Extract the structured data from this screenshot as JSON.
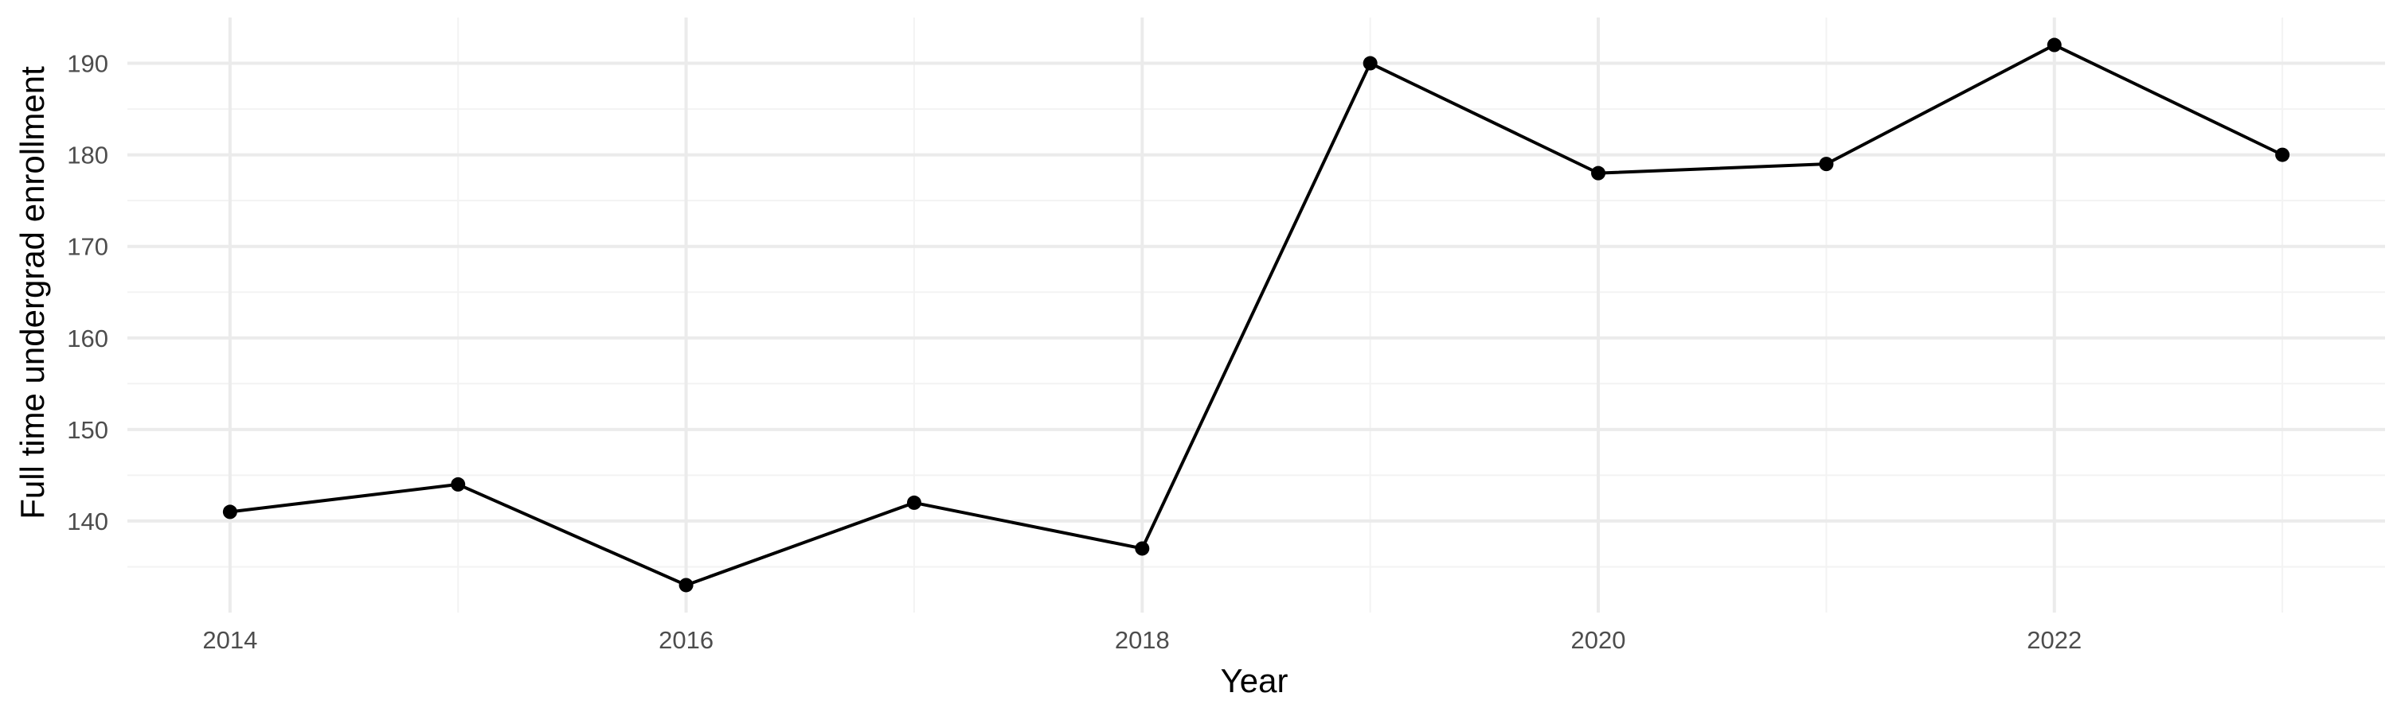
{
  "chart_data": {
    "type": "line",
    "title": "",
    "xlabel": "Year",
    "ylabel": "Full time undergrad enrollment",
    "x": [
      2014,
      2015,
      2016,
      2017,
      2018,
      2019,
      2020,
      2021,
      2022,
      2023
    ],
    "series": [
      {
        "values": [
          141,
          144,
          133,
          142,
          137,
          190,
          178,
          179,
          192,
          180
        ]
      }
    ],
    "xlim": [
      2013.55,
      2023.45
    ],
    "ylim": [
      130,
      195
    ],
    "x_ticks": [
      2014,
      2016,
      2018,
      2020,
      2022
    ],
    "x_tick_labels": [
      "2014",
      "2016",
      "2018",
      "2020",
      "2022"
    ],
    "y_ticks": [
      140,
      150,
      160,
      170,
      180,
      190
    ],
    "y_tick_labels": [
      "140",
      "150",
      "160",
      "170",
      "180",
      "190"
    ],
    "grid": true,
    "legend": "none",
    "colors": {
      "line": "#000000",
      "grid": "#ebebeb",
      "background": "#ffffff"
    }
  }
}
